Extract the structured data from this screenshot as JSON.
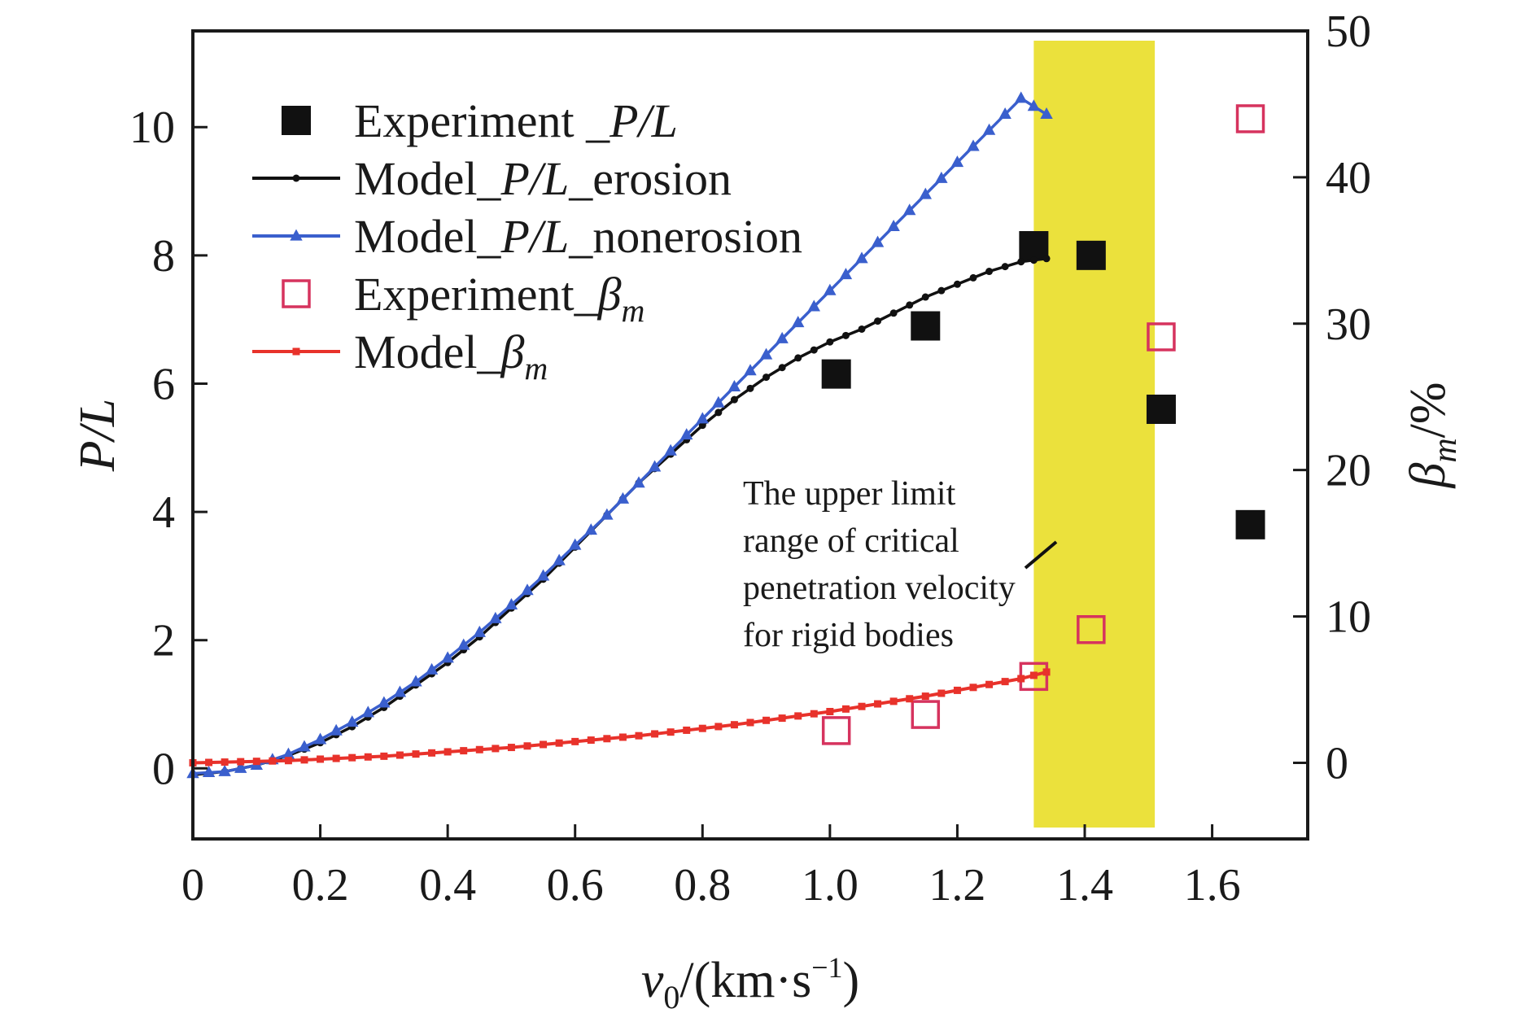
{
  "chart_data": {
    "type": "line",
    "x_axis": {
      "label_var": "v",
      "label_sub": "0",
      "label_unit": "/(km·s",
      "label_sup": "−1",
      "label_close": ")",
      "range": [
        0,
        1.75
      ],
      "ticks": [
        0,
        0.2,
        0.4,
        0.6,
        0.8,
        1.0,
        1.2,
        1.4,
        1.6
      ],
      "tick_labels": [
        "0",
        "0.2",
        "0.4",
        "0.6",
        "0.8",
        "1.0",
        "1.2",
        "1.4",
        "1.6"
      ]
    },
    "y_axis_left": {
      "label": "P/L",
      "range": [
        -1.1,
        11.5
      ],
      "ticks": [
        0,
        2,
        4,
        6,
        8,
        10
      ],
      "tick_labels": [
        "0",
        "2",
        "4",
        "6",
        "8",
        "10"
      ]
    },
    "y_axis_right": {
      "label_var": "β",
      "label_sub": "m",
      "label_unit": "/%",
      "range": [
        -5.2,
        50
      ],
      "ticks": [
        0,
        10,
        20,
        30,
        40,
        50
      ],
      "tick_labels": [
        "0",
        "10",
        "20",
        "30",
        "40",
        "50"
      ]
    },
    "series": [
      {
        "name": "Experiment_P/L",
        "legend_text": "Experiment _",
        "legend_italic": "P/L",
        "axis": "left",
        "style": "filled-square",
        "color": "#111111",
        "x": [
          1.01,
          1.15,
          1.32,
          1.41,
          1.52,
          1.66
        ],
        "y": [
          6.15,
          6.9,
          8.15,
          8.0,
          5.6,
          3.8
        ]
      },
      {
        "name": "Model_P/L_erosion",
        "legend_text": "Model_",
        "legend_italic": "P/L",
        "legend_suffix": "_erosion",
        "axis": "left",
        "style": "line-dot",
        "color": "#111111",
        "x": [
          0,
          0.05,
          0.1,
          0.15,
          0.2,
          0.25,
          0.3,
          0.35,
          0.4,
          0.45,
          0.5,
          0.55,
          0.6,
          0.65,
          0.7,
          0.75,
          0.8,
          0.85,
          0.9,
          0.95,
          1.0,
          1.05,
          1.1,
          1.15,
          1.2,
          1.25,
          1.3,
          1.34
        ],
        "y": [
          -0.1,
          -0.05,
          0.05,
          0.2,
          0.4,
          0.65,
          0.95,
          1.3,
          1.65,
          2.05,
          2.5,
          2.95,
          3.45,
          3.95,
          4.45,
          4.9,
          5.35,
          5.75,
          6.1,
          6.4,
          6.65,
          6.85,
          7.1,
          7.35,
          7.55,
          7.75,
          7.9,
          7.95
        ]
      },
      {
        "name": "Model_P/L_nonerosion",
        "legend_text": "Model_",
        "legend_italic": "P/L",
        "legend_suffix": "_nonerosion",
        "axis": "left",
        "style": "line-triangle",
        "color": "#3a5fcd",
        "x": [
          0,
          0.05,
          0.1,
          0.15,
          0.2,
          0.25,
          0.3,
          0.35,
          0.4,
          0.45,
          0.5,
          0.55,
          0.6,
          0.65,
          0.7,
          0.75,
          0.8,
          0.85,
          0.9,
          0.95,
          1.0,
          1.05,
          1.1,
          1.15,
          1.2,
          1.25,
          1.3,
          1.34
        ],
        "y": [
          -0.08,
          -0.05,
          0.05,
          0.22,
          0.45,
          0.72,
          1.02,
          1.35,
          1.72,
          2.12,
          2.55,
          3.0,
          3.48,
          3.95,
          4.45,
          4.95,
          5.45,
          5.95,
          6.45,
          6.95,
          7.45,
          7.95,
          8.45,
          8.95,
          9.45,
          9.95,
          10.45,
          10.2
        ]
      },
      {
        "name": "Experiment_βm",
        "legend_text": "Experiment_",
        "legend_italic": "β",
        "legend_sub": "m",
        "axis": "right",
        "style": "open-square",
        "color": "#d6335e",
        "x": [
          1.01,
          1.15,
          1.32,
          1.41,
          1.52,
          1.66
        ],
        "y": [
          2.2,
          3.3,
          5.9,
          9.1,
          29.1,
          44.0
        ]
      },
      {
        "name": "Model_βm",
        "legend_text": "Model_",
        "legend_italic": "β",
        "legend_sub": "m",
        "axis": "right",
        "style": "line-square",
        "color": "#e8322b",
        "x": [
          0,
          0.05,
          0.1,
          0.15,
          0.2,
          0.25,
          0.3,
          0.35,
          0.4,
          0.45,
          0.5,
          0.55,
          0.6,
          0.65,
          0.7,
          0.75,
          0.8,
          0.85,
          0.9,
          0.95,
          1.0,
          1.05,
          1.1,
          1.15,
          1.2,
          1.25,
          1.3,
          1.34
        ],
        "y": [
          0,
          0.05,
          0.1,
          0.15,
          0.25,
          0.35,
          0.45,
          0.6,
          0.75,
          0.9,
          1.05,
          1.25,
          1.45,
          1.65,
          1.85,
          2.1,
          2.35,
          2.6,
          2.9,
          3.2,
          3.5,
          3.85,
          4.2,
          4.55,
          4.95,
          5.35,
          5.75,
          6.2
        ]
      }
    ],
    "shaded_region": {
      "x": [
        1.32,
        1.51
      ],
      "color": "#ebe13c"
    },
    "annotation": {
      "lines": [
        "The upper limit",
        "range of critical",
        "penetration velocity",
        "for rigid bodies"
      ],
      "pointer_x": 1.36,
      "pointer_y_left": 3.55
    },
    "legend_position": "top-left",
    "grid": false
  }
}
